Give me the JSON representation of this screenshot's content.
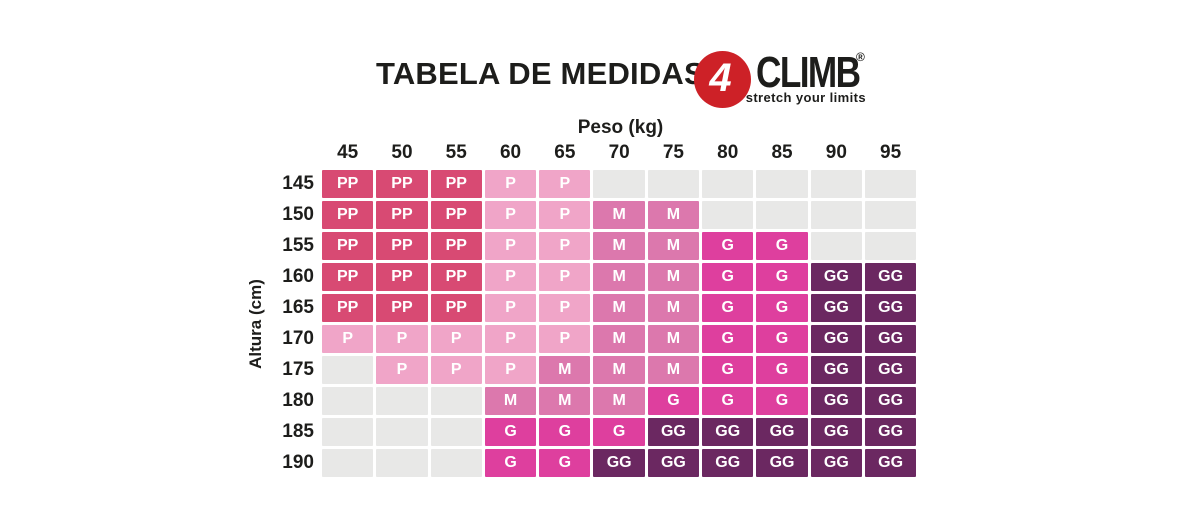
{
  "header": {
    "title": "TABELA DE MEDIDAS",
    "logo": {
      "number": "4",
      "brand": "CLIMB",
      "registered": "®",
      "tagline": "stretch your limits",
      "circle_color": "#cd2127",
      "text_color": "#1d1d1b"
    }
  },
  "chart_data": {
    "type": "heatmap",
    "title": "TABELA DE MEDIDAS",
    "xlabel": "Peso (kg)",
    "ylabel": "Altura (cm)",
    "x_categories": [
      "45",
      "50",
      "55",
      "60",
      "65",
      "70",
      "75",
      "80",
      "85",
      "90",
      "95"
    ],
    "y_categories": [
      "145",
      "150",
      "155",
      "160",
      "165",
      "170",
      "175",
      "180",
      "185",
      "190"
    ],
    "values": [
      [
        "PP",
        "PP",
        "PP",
        "P",
        "P",
        "",
        "",
        "",
        "",
        "",
        ""
      ],
      [
        "PP",
        "PP",
        "PP",
        "P",
        "P",
        "M",
        "M",
        "",
        "",
        "",
        ""
      ],
      [
        "PP",
        "PP",
        "PP",
        "P",
        "P",
        "M",
        "M",
        "G",
        "G",
        "",
        ""
      ],
      [
        "PP",
        "PP",
        "PP",
        "P",
        "P",
        "M",
        "M",
        "G",
        "G",
        "GG",
        "GG"
      ],
      [
        "PP",
        "PP",
        "PP",
        "P",
        "P",
        "M",
        "M",
        "G",
        "G",
        "GG",
        "GG"
      ],
      [
        "P",
        "P",
        "P",
        "P",
        "P",
        "M",
        "M",
        "G",
        "G",
        "GG",
        "GG"
      ],
      [
        "",
        "P",
        "P",
        "P",
        "M",
        "M",
        "M",
        "G",
        "G",
        "GG",
        "GG"
      ],
      [
        "",
        "",
        "",
        "M",
        "M",
        "M",
        "G",
        "G",
        "G",
        "GG",
        "GG"
      ],
      [
        "",
        "",
        "",
        "G",
        "G",
        "G",
        "GG",
        "GG",
        "GG",
        "GG",
        "GG"
      ],
      [
        "",
        "",
        "",
        "G",
        "G",
        "GG",
        "GG",
        "GG",
        "GG",
        "GG",
        "GG"
      ]
    ],
    "sizes_legend": [
      "PP",
      "P",
      "M",
      "G",
      "GG"
    ],
    "colors": {
      "PP": "#d84a73",
      "P": "#f0a5c8",
      "M": "#dc78ad",
      "G": "#de3f9e",
      "GG": "#6b2861",
      "empty": "#e8e8e7",
      "cell_text": "#ffffff",
      "label_text": "#1d1d1b"
    }
  }
}
